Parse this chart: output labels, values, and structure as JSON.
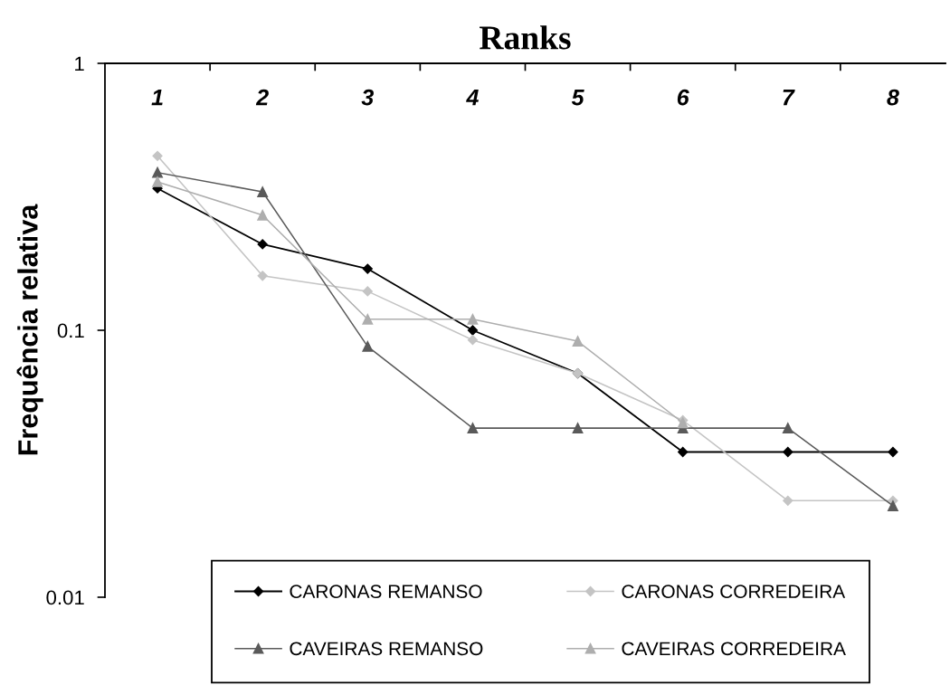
{
  "chart_data": {
    "type": "line",
    "xlabel": "Ranks",
    "ylabel": "Frequência relativa",
    "categories": [
      "1",
      "2",
      "3",
      "4",
      "5",
      "6",
      "7",
      "8"
    ],
    "log": "y",
    "ylim": [
      0.01,
      1
    ],
    "yticks": [
      0.01,
      0.1,
      1
    ],
    "legend": "bottom",
    "series": [
      {
        "name": "CARONAS REMANSO",
        "color": "#000000",
        "marker": "diamond",
        "values": [
          0.34,
          0.21,
          0.17,
          0.1,
          0.069,
          0.035,
          0.035,
          0.035
        ]
      },
      {
        "name": "CARONAS CORREDEIRA",
        "color": "#c4c4c4",
        "marker": "diamond",
        "values": [
          0.45,
          0.16,
          0.14,
          0.092,
          0.069,
          0.046,
          0.023,
          0.023
        ]
      },
      {
        "name": "CAVEIRAS REMANSO",
        "color": "#5a5a5a",
        "marker": "triangle",
        "values": [
          0.39,
          0.33,
          0.087,
          0.043,
          0.043,
          0.043,
          0.043,
          0.022
        ]
      },
      {
        "name": "CAVEIRAS CORREDEIRA",
        "color": "#aeaeae",
        "marker": "triangle",
        "values": [
          0.36,
          0.27,
          0.11,
          0.11,
          0.091,
          0.045,
          null,
          null
        ]
      }
    ]
  }
}
